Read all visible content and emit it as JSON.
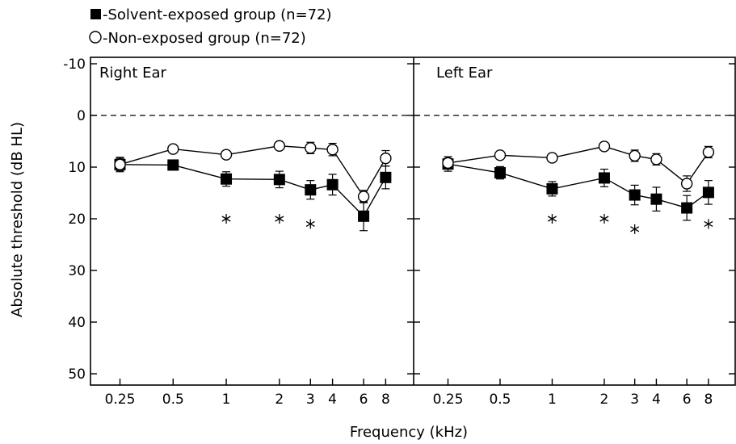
{
  "chart_data": {
    "type": "line",
    "xlabel": "Frequency (kHz)",
    "ylabel": "Absolute threshold (dB HL)",
    "x_scale": "log",
    "y_inverted": true,
    "ylim": [
      -10,
      50
    ],
    "yticks": [
      -10,
      0,
      10,
      20,
      30,
      40,
      50
    ],
    "ytick_labels": [
      "-10",
      "0",
      "10",
      "20",
      "30",
      "40",
      "50"
    ],
    "xticks": [
      0.25,
      0.5,
      1,
      2,
      3,
      4,
      6,
      8
    ],
    "xtick_labels": [
      "0.25",
      "0.5",
      "1",
      "2",
      "3",
      "4",
      "6",
      "8"
    ],
    "reference_line": 0,
    "legend": {
      "placement": "top-left, outside plot",
      "entries": [
        {
          "series": "Solvent-exposed group (n=72)",
          "marker": "filled-square",
          "label": "-Solvent-exposed group (n=72)"
        },
        {
          "series": "Non-exposed group (n=72)",
          "marker": "open-circle",
          "label": "-Non-exposed group (n=72)"
        }
      ]
    },
    "panels": [
      {
        "title": "Right Ear",
        "series": [
          {
            "name": "Solvent-exposed group (n=72)",
            "marker": "filled-square",
            "x": [
              0.25,
              0.5,
              1,
              2,
              3,
              4,
              6,
              8
            ],
            "y": [
              9.5,
              9.6,
              12.3,
              12.4,
              14.4,
              13.4,
              19.5,
              12.0
            ],
            "error": [
              1.4,
              0.6,
              1.4,
              1.6,
              1.8,
              2.0,
              2.8,
              2.2
            ]
          },
          {
            "name": "Non-exposed group (n=72)",
            "marker": "open-circle",
            "x": [
              0.25,
              0.5,
              1,
              2,
              3,
              4,
              6,
              8
            ],
            "y": [
              9.5,
              6.5,
              7.6,
              5.9,
              6.3,
              6.6,
              15.7,
              8.3
            ],
            "error": [
              1.2,
              0.5,
              0.5,
              0.5,
              1.1,
              1.2,
              1.2,
              1.5
            ]
          }
        ],
        "significance": {
          "symbol": "*",
          "x": [
            1,
            2,
            3
          ],
          "y": [
            20,
            20,
            21
          ]
        }
      },
      {
        "title": "Left Ear",
        "series": [
          {
            "name": "Solvent-exposed group (n=72)",
            "marker": "filled-square",
            "x": [
              0.25,
              0.5,
              1,
              2,
              3,
              4,
              6,
              8
            ],
            "y": [
              9.4,
              11.1,
              14.2,
              12.1,
              15.4,
              16.2,
              17.9,
              14.9
            ],
            "error": [
              1.4,
              1.2,
              1.4,
              1.7,
              1.9,
              2.3,
              2.4,
              2.3
            ]
          },
          {
            "name": "Non-exposed group (n=72)",
            "marker": "open-circle",
            "x": [
              0.25,
              0.5,
              1,
              2,
              3,
              4,
              6,
              8
            ],
            "y": [
              9.2,
              7.7,
              8.2,
              6.0,
              7.8,
              8.5,
              13.2,
              7.1
            ],
            "error": [
              1.2,
              0.5,
              0.5,
              0.5,
              1.1,
              1.1,
              1.5,
              1.1
            ]
          }
        ],
        "significance": {
          "symbol": "*",
          "x": [
            1,
            2,
            3,
            8
          ],
          "y": [
            20,
            20,
            22,
            21
          ]
        }
      }
    ]
  }
}
